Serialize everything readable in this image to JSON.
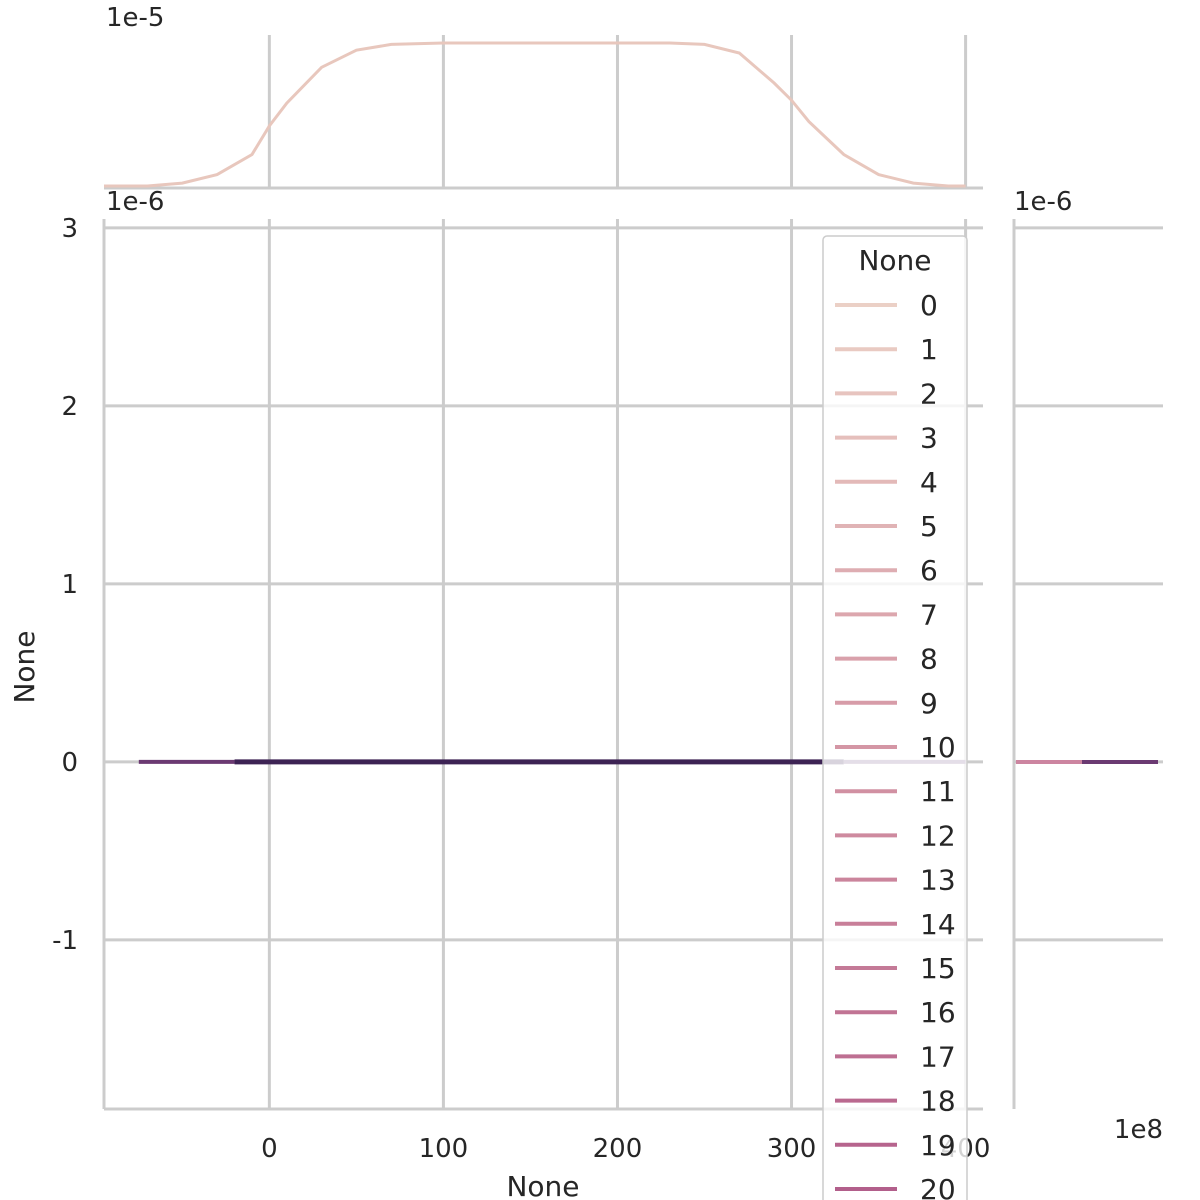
{
  "chart_data": {
    "type": "line",
    "title": "",
    "xlabel": "None",
    "ylabel": "None",
    "xlim": [
      -95,
      410
    ],
    "ylim": [
      -1.95,
      3.05
    ],
    "x_ticks": [
      "0",
      "100",
      "200",
      "300",
      "400"
    ],
    "y_ticks": [
      "-1",
      "0",
      "1",
      "2",
      "3"
    ],
    "y_offset_label": "1e-6",
    "grid": true,
    "joint_series": [
      {
        "name": "0",
        "x": [
          -75,
          0,
          100,
          200,
          300,
          400
        ],
        "y": [
          0,
          0,
          0,
          0,
          0,
          0
        ]
      }
    ],
    "marginal_x": {
      "offset_label": "1e-5",
      "ylim": [
        0,
        1.0
      ],
      "x": [
        -95,
        -70,
        -50,
        -30,
        -10,
        0,
        10,
        30,
        50,
        70,
        100,
        150,
        200,
        230,
        250,
        270,
        290,
        300,
        310,
        330,
        350,
        370,
        390,
        400
      ],
      "y": [
        0.0,
        0.0,
        0.02,
        0.08,
        0.22,
        0.42,
        0.58,
        0.83,
        0.95,
        0.99,
        1.0,
        1.0,
        1.0,
        1.0,
        0.99,
        0.93,
        0.72,
        0.6,
        0.45,
        0.22,
        0.08,
        0.02,
        0.0,
        0.0
      ]
    },
    "marginal_y": {
      "offset_label": "1e-6",
      "x_offset_label": "1e8"
    },
    "legend": {
      "title": "None",
      "placement": "upper-right",
      "entries": [
        "0",
        "1",
        "2",
        "3",
        "4",
        "5",
        "6",
        "7",
        "8",
        "9",
        "10",
        "11",
        "12",
        "13",
        "14",
        "15",
        "16",
        "17",
        "18",
        "19",
        "20"
      ],
      "colors": [
        "#ebd0c6",
        "#e9cac2",
        "#e7c4bf",
        "#e5bfbc",
        "#e3b9b8",
        "#e0b3b5",
        "#deadb2",
        "#dca7ae",
        "#d9a1ab",
        "#d79ca8",
        "#d496a5",
        "#d190a2",
        "#ce8a9f",
        "#cb859c",
        "#c87f99",
        "#c47a97",
        "#c17494",
        "#be6f92",
        "#ba698f",
        "#b6648d",
        "#b25f8b"
      ]
    },
    "colors": {
      "grid": "#cccccc",
      "spine": "#cccccc",
      "marginal_line": "#e8c7bd",
      "joint_line": "#3d2354",
      "joint_line_light": "#b7648d",
      "marginal_y_line": "#6b3a72"
    }
  }
}
